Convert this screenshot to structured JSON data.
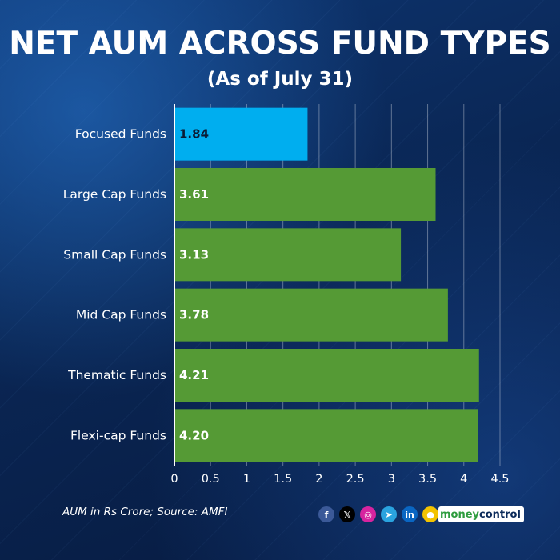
{
  "header": {
    "title": "NET AUM ACROSS FUND TYPES",
    "subtitle": "(As of July 31)"
  },
  "chart_data": {
    "type": "bar",
    "orientation": "horizontal",
    "title": "NET AUM ACROSS FUND TYPES",
    "subtitle": "(As of July 31)",
    "categories": [
      "Focused Funds",
      "Large Cap Funds",
      "Small Cap Funds",
      "Mid Cap Funds",
      "Thematic Funds",
      "Flexi-cap Funds"
    ],
    "values": [
      1.84,
      3.61,
      3.13,
      3.78,
      4.21,
      4.2
    ],
    "value_labels": [
      "1.84",
      "3.61",
      "3.13",
      "3.78",
      "4.21",
      "4.20"
    ],
    "bar_colors": [
      "#00aeef",
      "#559a35",
      "#559a35",
      "#559a35",
      "#559a35",
      "#559a35"
    ],
    "value_label_colors": [
      "#0b1a33",
      "#ffffff",
      "#ffffff",
      "#ffffff",
      "#ffffff",
      "#ffffff"
    ],
    "xticks": [
      0,
      0.5,
      1,
      1.5,
      2,
      2.5,
      3,
      3.5,
      4,
      4.5
    ],
    "xtick_labels": [
      "0",
      "0.5",
      "1",
      "1.5",
      "2",
      "2.5",
      "3",
      "3.5",
      "4",
      "4.5"
    ],
    "xlim": [
      0,
      4.5
    ],
    "grid": true,
    "xlabel": "",
    "ylabel": ""
  },
  "footer": {
    "note": "AUM in Rs Crore; Source: AMFI",
    "social_icons": [
      {
        "name": "facebook-icon",
        "glyph": "f",
        "color": "#3b5998"
      },
      {
        "name": "x-icon",
        "glyph": "𝕏",
        "color": "#000000"
      },
      {
        "name": "instagram-icon",
        "glyph": "◎",
        "color": "#d6249f"
      },
      {
        "name": "telegram-icon",
        "glyph": "➤",
        "color": "#2aa3df"
      },
      {
        "name": "linkedin-icon",
        "glyph": "in",
        "color": "#0a66c2"
      },
      {
        "name": "koo-icon",
        "glyph": "●",
        "color": "#f3c300"
      }
    ],
    "brand_money": "money",
    "brand_control": "control"
  }
}
